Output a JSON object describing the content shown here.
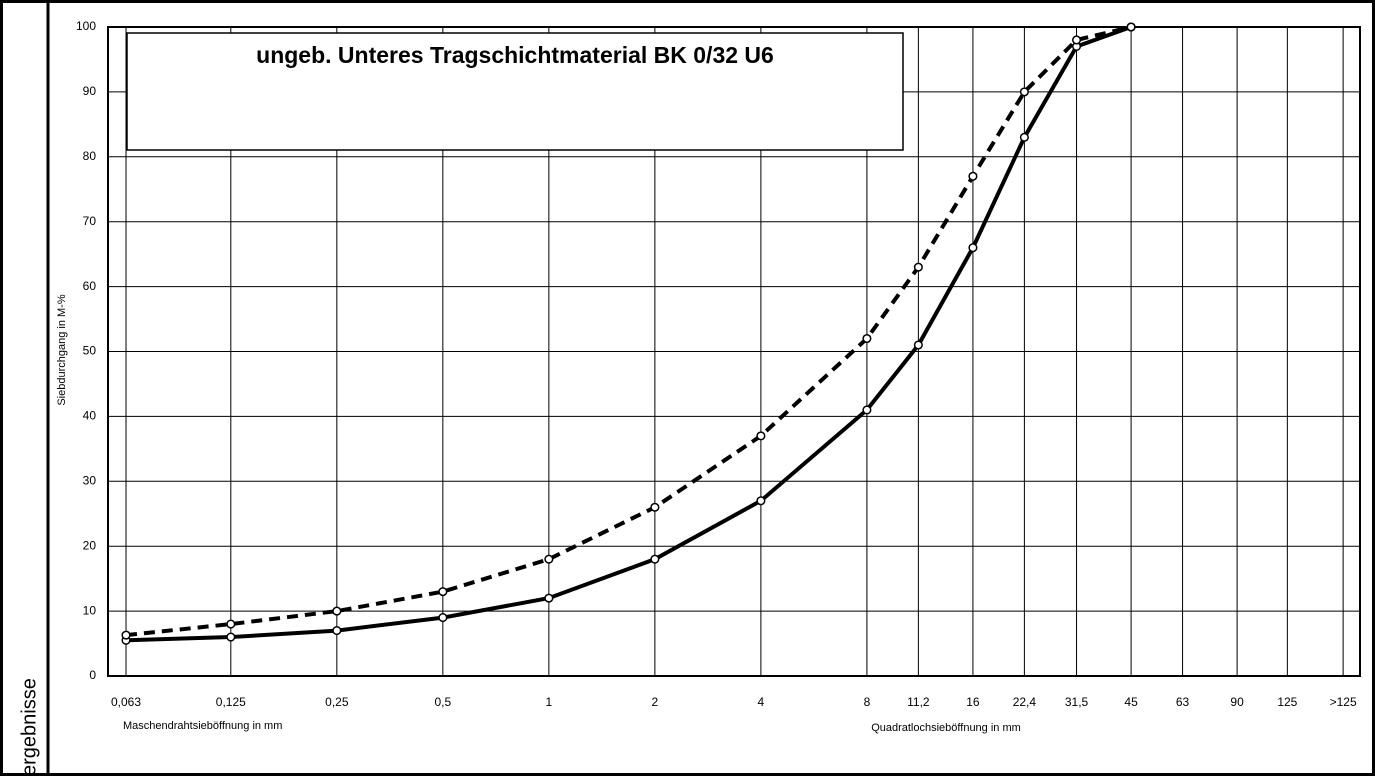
{
  "sidebar": {
    "label": "ergebnisse"
  },
  "chart_data": {
    "type": "line",
    "title": "ungeb. Unteres Tragschichtmaterial BK 0/32 U6",
    "y_label": "Siebdurchgang in M-%",
    "x_label_left": "Maschendrahtsieböffnung in mm",
    "x_label_right": "Quadratlochsieböffnung in mm",
    "x_scale": "log",
    "xlim": [
      0.056,
      201
    ],
    "xticks": [
      {
        "value": 0.063,
        "label": "0,063"
      },
      {
        "value": 0.125,
        "label": "0,125"
      },
      {
        "value": 0.25,
        "label": "0,25"
      },
      {
        "value": 0.5,
        "label": "0,5"
      },
      1,
      2,
      4,
      8,
      {
        "value": 11.2,
        "label": "11,2"
      },
      16,
      {
        "value": 22.4,
        "label": "22,4"
      },
      {
        "value": 31.5,
        "label": "31,5"
      },
      45,
      63,
      90,
      125,
      {
        "value": 180,
        "label": ">125"
      }
    ],
    "ylim": [
      0,
      100
    ],
    "yticks": [
      0,
      10,
      20,
      30,
      40,
      50,
      60,
      70,
      80,
      90,
      100
    ],
    "grid": true,
    "x": [
      0.063,
      0.125,
      0.25,
      0.5,
      1,
      2,
      4,
      8,
      11.2,
      16,
      22.4,
      31.5,
      45
    ],
    "series": [
      {
        "color": "#000000",
        "line_style": "solid",
        "values": [
          5.5,
          6,
          7,
          9,
          12,
          18,
          27,
          41,
          51,
          66,
          83,
          97,
          100
        ]
      },
      {
        "color": "#000000",
        "line_style": "dashed",
        "values": [
          6.3,
          8,
          10,
          13,
          18,
          26,
          37,
          52,
          63,
          77,
          90,
          98,
          100
        ]
      }
    ]
  }
}
